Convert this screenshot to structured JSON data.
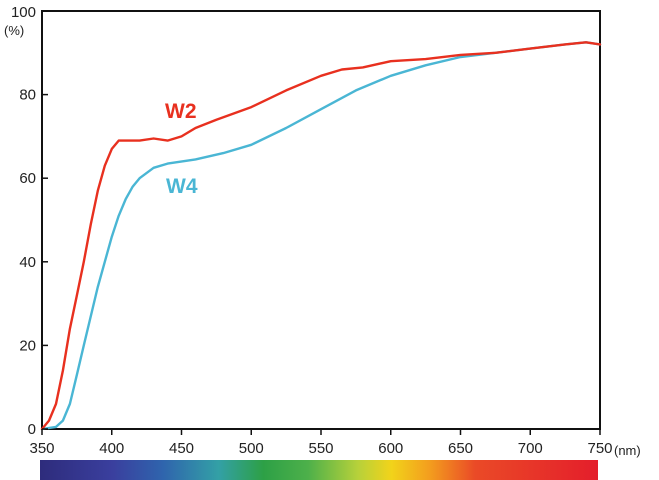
{
  "chart_data": {
    "type": "line",
    "xlim": [
      350,
      750
    ],
    "ylim": [
      0,
      100
    ],
    "x_ticks": [
      "350",
      "400",
      "450",
      "500",
      "550",
      "600",
      "650",
      "700",
      "750"
    ],
    "y_ticks": [
      "0",
      "20",
      "40",
      "60",
      "80",
      "100"
    ],
    "xunit": "(nm)",
    "yunit": "(%)",
    "grid": false,
    "spectrum_bar": true,
    "series": [
      {
        "name": "W2",
        "color": "#e8301f",
        "points": [
          [
            350,
            0
          ],
          [
            355,
            2
          ],
          [
            360,
            6
          ],
          [
            365,
            14
          ],
          [
            370,
            24
          ],
          [
            375,
            32
          ],
          [
            380,
            40
          ],
          [
            385,
            49
          ],
          [
            390,
            57
          ],
          [
            395,
            63
          ],
          [
            400,
            67
          ],
          [
            405,
            69
          ],
          [
            410,
            69
          ],
          [
            420,
            69
          ],
          [
            430,
            69.5
          ],
          [
            440,
            69
          ],
          [
            450,
            70
          ],
          [
            460,
            72
          ],
          [
            475,
            74
          ],
          [
            500,
            77
          ],
          [
            525,
            81
          ],
          [
            550,
            84.5
          ],
          [
            565,
            86
          ],
          [
            580,
            86.5
          ],
          [
            600,
            88
          ],
          [
            625,
            88.5
          ],
          [
            650,
            89.5
          ],
          [
            675,
            90
          ],
          [
            700,
            91
          ],
          [
            725,
            92
          ],
          [
            740,
            92.5
          ],
          [
            750,
            92
          ]
        ]
      },
      {
        "name": "W4",
        "color": "#4ab6d4",
        "points": [
          [
            350,
            0
          ],
          [
            360,
            0.5
          ],
          [
            365,
            2
          ],
          [
            370,
            6
          ],
          [
            375,
            13
          ],
          [
            380,
            20
          ],
          [
            385,
            27
          ],
          [
            390,
            34
          ],
          [
            395,
            40
          ],
          [
            400,
            46
          ],
          [
            405,
            51
          ],
          [
            410,
            55
          ],
          [
            415,
            58
          ],
          [
            420,
            60
          ],
          [
            430,
            62.5
          ],
          [
            440,
            63.5
          ],
          [
            460,
            64.5
          ],
          [
            480,
            66
          ],
          [
            500,
            68
          ],
          [
            525,
            72
          ],
          [
            550,
            76.5
          ],
          [
            575,
            81
          ],
          [
            600,
            84.5
          ],
          [
            625,
            87
          ],
          [
            650,
            89
          ],
          [
            675,
            90
          ],
          [
            700,
            91
          ],
          [
            725,
            92
          ],
          [
            740,
            92.5
          ],
          [
            750,
            92
          ]
        ]
      }
    ]
  }
}
